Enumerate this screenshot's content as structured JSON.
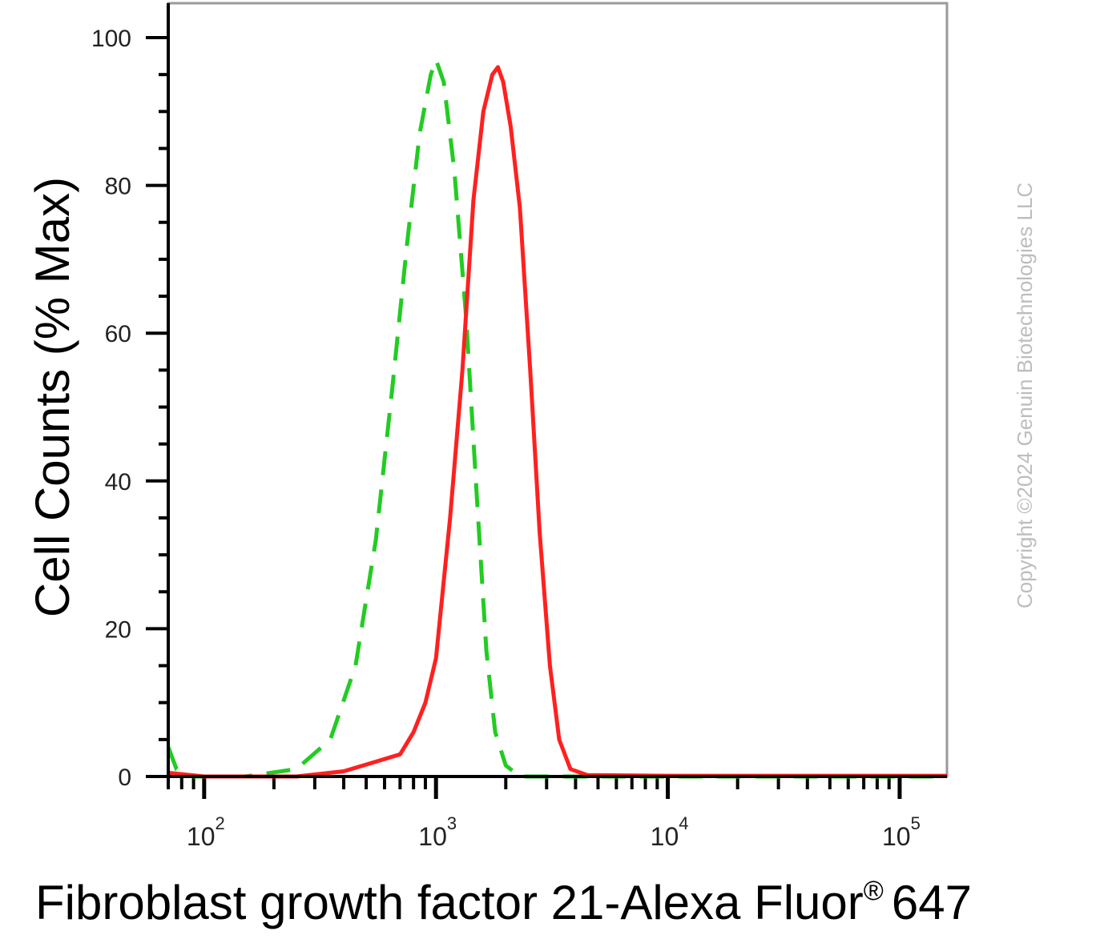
{
  "chart_data": {
    "type": "line",
    "title": "",
    "xlabel": "Fibroblast growth factor 21-Alexa Fluor",
    "xlabel_superscript": "®",
    "xlabel_suffix": "647",
    "ylabel": "Cell Counts (% Max)",
    "x_scale": "log",
    "xlim": [
      70,
      160000
    ],
    "ylim": [
      0,
      105
    ],
    "y_ticks": [
      0,
      20,
      40,
      60,
      80,
      100
    ],
    "y_tick_labels": [
      "0",
      "20",
      "40",
      "60",
      "80",
      "100"
    ],
    "x_ticks": [
      {
        "value": 100,
        "base": "10",
        "exp": "2"
      },
      {
        "value": 1000,
        "base": "10",
        "exp": "3"
      },
      {
        "value": 10000,
        "base": "10",
        "exp": "4"
      },
      {
        "value": 100000,
        "base": "10",
        "exp": "5"
      }
    ],
    "grid": false,
    "legend": "none",
    "series": [
      {
        "color": "#22cc22",
        "style": "dashed",
        "points": [
          [
            70,
            4
          ],
          [
            76,
            1
          ],
          [
            90,
            0
          ],
          [
            150,
            0
          ],
          [
            250,
            1
          ],
          [
            350,
            5
          ],
          [
            450,
            15
          ],
          [
            550,
            32
          ],
          [
            650,
            53
          ],
          [
            750,
            72
          ],
          [
            850,
            87
          ],
          [
            950,
            95
          ],
          [
            1000,
            97
          ],
          [
            1080,
            94
          ],
          [
            1200,
            82
          ],
          [
            1350,
            62
          ],
          [
            1500,
            38
          ],
          [
            1650,
            17
          ],
          [
            1800,
            6
          ],
          [
            2000,
            1.5
          ],
          [
            2300,
            0
          ],
          [
            5000,
            0
          ],
          [
            50000,
            0
          ],
          [
            160000,
            0
          ]
        ]
      },
      {
        "color": "#ff2020",
        "style": "solid",
        "points": [
          [
            70,
            0.5
          ],
          [
            100,
            0
          ],
          [
            250,
            0
          ],
          [
            400,
            0.7
          ],
          [
            550,
            2
          ],
          [
            700,
            3
          ],
          [
            800,
            6
          ],
          [
            900,
            10
          ],
          [
            1000,
            16
          ],
          [
            1150,
            35
          ],
          [
            1300,
            55
          ],
          [
            1450,
            78
          ],
          [
            1600,
            90
          ],
          [
            1750,
            95
          ],
          [
            1850,
            96
          ],
          [
            1950,
            94
          ],
          [
            2100,
            88
          ],
          [
            2300,
            77
          ],
          [
            2550,
            55
          ],
          [
            2800,
            33
          ],
          [
            3100,
            15
          ],
          [
            3400,
            5
          ],
          [
            3800,
            1
          ],
          [
            4500,
            0.2
          ],
          [
            10000,
            0.1
          ],
          [
            160000,
            0.1
          ]
        ]
      }
    ]
  },
  "copyright": "Copyright ©2024 Genuin Biotechnologies LLC"
}
